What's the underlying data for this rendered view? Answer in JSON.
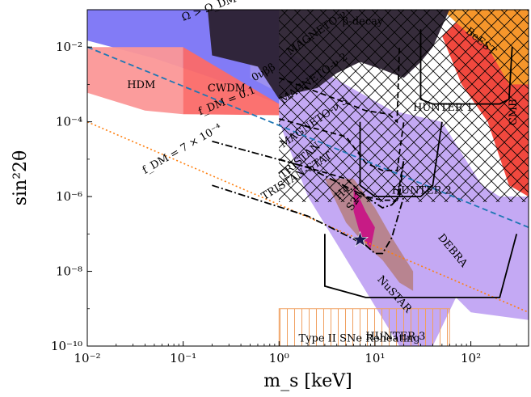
{
  "chart_data": {
    "type": "area",
    "title": "",
    "xlabel": "m_s [keV]",
    "ylabel": "sin²2θ",
    "xscale": "log",
    "yscale": "log",
    "xlim": [
      0.01,
      400
    ],
    "ylim": [
      1e-10,
      0.1
    ],
    "xticks": [
      {
        "value": 0.01,
        "label": "10⁻²"
      },
      {
        "value": 0.1,
        "label": "10⁻¹"
      },
      {
        "value": 1,
        "label": "10⁰"
      },
      {
        "value": 10,
        "label": "10¹"
      },
      {
        "value": 100,
        "label": "10²"
      }
    ],
    "yticks": [
      {
        "value": 1e-10,
        "label": "10⁻¹⁰"
      },
      {
        "value": 1e-08,
        "label": "10⁻⁸"
      },
      {
        "value": 1e-06,
        "label": "10⁻⁶"
      },
      {
        "value": 0.0001,
        "label": "10⁻⁴"
      },
      {
        "value": 0.01,
        "label": "10⁻²"
      }
    ],
    "regions": [
      {
        "name": "Ω > Ω_DM",
        "color": "#7b74f5",
        "points": [
          [
            0.01,
            0.1
          ],
          [
            1,
            0.1
          ],
          [
            1,
            0.0003
          ],
          [
            0.2,
            0.0015
          ],
          [
            0.05,
            0.005
          ],
          [
            0.01,
            0.015
          ]
        ]
      },
      {
        "name": "HDM",
        "color": "#fb9797",
        "points": [
          [
            0.01,
            0.01
          ],
          [
            0.1,
            0.01
          ],
          [
            0.1,
            0.00016
          ],
          [
            0.04,
            0.0002
          ],
          [
            0.01,
            0.0006
          ]
        ]
      },
      {
        "name": "CWDM",
        "color": "#fb6a68",
        "points": [
          [
            0.1,
            0.01
          ],
          [
            1,
            0.0003
          ],
          [
            1,
            0.00015
          ],
          [
            0.1,
            0.00016
          ]
        ]
      },
      {
        "name": "0νββ",
        "color": "#9d91ee",
        "points": [
          [
            0.5,
            0.004
          ],
          [
            1,
            0.002
          ],
          [
            1,
            0.0006
          ],
          [
            0.5,
            0.0015
          ]
        ]
      },
      {
        "name": "DEBRA",
        "color": "#c1a4f3",
        "points": [
          [
            1,
            0.01
          ],
          [
            15,
            0.0002
          ],
          [
            50,
            0.0001
          ],
          [
            130,
            2e-06
          ],
          [
            200,
            1e-06
          ],
          [
            400,
            1e-06
          ],
          [
            400,
            5e-10
          ],
          [
            100,
            8e-10
          ],
          [
            70,
            2e-09
          ],
          [
            40,
            1e-10
          ],
          [
            18,
            1e-10
          ],
          [
            2,
            1e-06
          ],
          [
            1,
            0.0001
          ]
        ]
      },
      {
        "name": "NuSTAR",
        "color": "#b7828a",
        "points": [
          [
            3,
            3e-06
          ],
          [
            5,
            2e-07
          ],
          [
            8,
            5e-08
          ],
          [
            12,
            2e-08
          ],
          [
            18,
            5e-09
          ],
          [
            25,
            3e-09
          ],
          [
            25,
            1e-08
          ],
          [
            15,
            8e-08
          ],
          [
            10,
            5e-07
          ],
          [
            6,
            3e-06
          ]
        ]
      },
      {
        "name": "S21",
        "color": "#c71585",
        "points": [
          [
            6,
            2e-06
          ],
          [
            8,
            4e-07
          ],
          [
            10,
            1.5e-07
          ],
          [
            9,
            4e-08
          ],
          [
            7,
            1e-07
          ],
          [
            6,
            4e-07
          ]
        ]
      },
      {
        "name": "CMB",
        "color": "#f03e34",
        "points": [
          [
            100,
            0.1
          ],
          [
            250,
            0.1
          ],
          [
            400,
            0.1
          ],
          [
            400,
            1e-06
          ],
          [
            250,
            2e-06
          ],
          [
            150,
            0.0001
          ],
          [
            80,
            0.001
          ],
          [
            50,
            0.02
          ]
        ]
      },
      {
        "name": "BeEST",
        "color": "#f59b2a",
        "points": [
          [
            50,
            0.1
          ],
          [
            400,
            0.1
          ],
          [
            400,
            0.001
          ],
          [
            250,
            0.001
          ],
          [
            150,
            0.01
          ],
          [
            100,
            0.02
          ]
        ]
      },
      {
        "name": "β-decay",
        "color": "#2b2130",
        "points": [
          [
            0.18,
            0.1
          ],
          [
            60,
            0.1
          ],
          [
            40,
            0.01
          ],
          [
            30,
            0.004
          ],
          [
            20,
            0.0015
          ],
          [
            12,
            0.0025
          ],
          [
            7,
            0.004
          ],
          [
            4,
            0.002
          ],
          [
            2.5,
            0.0008
          ],
          [
            1.5,
            0.0006
          ],
          [
            1,
            0.0004
          ],
          [
            0.6,
            0.003
          ],
          [
            0.2,
            0.006
          ]
        ]
      },
      {
        "name": "Type II SNe Reheating",
        "color": "#f0a060",
        "points": [
          [
            1,
            1e-09
          ],
          [
            1,
            1e-10
          ],
          [
            60,
            1e-10
          ],
          [
            60,
            1e-09
          ]
        ]
      }
    ],
    "lines": [
      {
        "name": "f_DM = 0.1",
        "color": "#1f77b4",
        "style": "dashed",
        "points": [
          [
            0.01,
            0.01
          ],
          [
            400,
            1.5e-07
          ]
        ]
      },
      {
        "name": "f_DM = 7 × 10⁻⁴",
        "color": "#ff7f0e",
        "style": "dotted",
        "points": [
          [
            0.01,
            0.0001
          ],
          [
            400,
            8e-10
          ]
        ]
      },
      {
        "name": "MAGNETO-ν",
        "color": "#000000",
        "style": "dashed",
        "points": [
          [
            1,
            0.0015
          ],
          [
            4,
            0.0004
          ],
          [
            8,
            0.0002
          ],
          [
            14,
            0.00016
          ],
          [
            17,
            0.0001
          ],
          [
            18,
            0.01
          ]
        ]
      },
      {
        "name": "MAGNETO-ν 2",
        "color": "#000000",
        "style": "dashed",
        "points": [
          [
            1,
            0.00012
          ],
          [
            5,
            4e-05
          ],
          [
            8,
            8e-06
          ],
          [
            12,
            5e-06
          ],
          [
            17,
            5e-06
          ],
          [
            20,
            0.0001
          ]
        ]
      },
      {
        "name": "MAGNETO-ν 3",
        "color": "#000000",
        "style": "dashed",
        "points": [
          [
            1,
            1e-05
          ],
          [
            5,
            3e-06
          ],
          [
            8,
            1e-06
          ],
          [
            12,
            8e-07
          ],
          [
            17,
            8e-07
          ],
          [
            20,
            1e-05
          ]
        ]
      },
      {
        "name": "TRISTAN",
        "color": "#000000",
        "style": "dashdot",
        "points": [
          [
            0.2,
            3e-05
          ],
          [
            2,
            6e-06
          ],
          [
            8,
            1e-06
          ],
          [
            12,
            5e-07
          ],
          [
            15,
            6e-07
          ],
          [
            18,
            1e-06
          ],
          [
            20,
            1e-05
          ]
        ]
      },
      {
        "name": "TRISTAN-STAT",
        "color": "#000000",
        "style": "dashdot",
        "points": [
          [
            0.2,
            2e-06
          ],
          [
            2,
            3e-07
          ],
          [
            8,
            5e-08
          ],
          [
            10,
            3e-08
          ],
          [
            12,
            3e-08
          ],
          [
            15,
            8e-08
          ],
          [
            18,
            4e-07
          ],
          [
            20,
            1e-06
          ]
        ]
      },
      {
        "name": "HUNTER 1",
        "color": "#000000",
        "style": "solid",
        "points": [
          [
            30,
            0.03
          ],
          [
            30,
            0.0004
          ],
          [
            40,
            0.0003
          ],
          [
            200,
            0.0003
          ],
          [
            250,
            0.0004
          ],
          [
            270,
            0.01
          ]
        ]
      },
      {
        "name": "HUNTER 2",
        "color": "#000000",
        "style": "solid",
        "points": [
          [
            7,
            0.0001
          ],
          [
            7,
            2e-06
          ],
          [
            10,
            1e-06
          ],
          [
            30,
            1e-06
          ],
          [
            40,
            2e-06
          ],
          [
            50,
            0.0001
          ]
        ]
      },
      {
        "name": "HUNTER 3",
        "color": "#000000",
        "style": "solid",
        "points": [
          [
            3,
            1e-07
          ],
          [
            3,
            4e-09
          ],
          [
            8,
            2e-09
          ],
          [
            150,
            2e-09
          ],
          [
            200,
            2e-09
          ],
          [
            300,
            1e-07
          ]
        ]
      }
    ],
    "labels": [
      {
        "text": "Ω > Ω_DM",
        "x": 0.1,
        "y": 0.05,
        "rotate": -20,
        "color": "#ffffff"
      },
      {
        "text": "β-decay",
        "x": 4.6,
        "y": 0.04,
        "rotate": 0,
        "color": "#ffffff"
      },
      {
        "text": "BeEST",
        "x": 87,
        "y": 0.025,
        "rotate": 40,
        "color": "#000000"
      },
      {
        "text": "CMB",
        "x": 300,
        "y": 8e-05,
        "rotate": -90,
        "color": "#000000"
      },
      {
        "text": "HDM",
        "x": 0.026,
        "y": 0.0008,
        "rotate": 0,
        "color": "#000000"
      },
      {
        "text": "CWDM",
        "x": 0.18,
        "y": 0.00065,
        "rotate": 0,
        "color": "#000000"
      },
      {
        "text": "0νββ",
        "x": 0.55,
        "y": 0.0012,
        "rotate": -30,
        "color": "#ffffff"
      },
      {
        "text": "MAGNETO-ν",
        "x": 1.3,
        "y": 0.006,
        "rotate": -35,
        "color": "#000000"
      },
      {
        "text": "MAGNETO-ν 2",
        "x": 1.1,
        "y": 0.0003,
        "rotate": -35,
        "color": "#000000"
      },
      {
        "text": "MAGNETO-ν 3",
        "x": 1.1,
        "y": 2e-05,
        "rotate": -35,
        "color": "#000000"
      },
      {
        "text": "f_DM = 0.1",
        "x": 0.15,
        "y": 0.00015,
        "rotate": -22,
        "color": "#000000"
      },
      {
        "text": "f_DM = 7 × 10⁻⁴",
        "x": 0.04,
        "y": 4e-06,
        "rotate": -30,
        "color": "#000000"
      },
      {
        "text": "TRISTAN",
        "x": 1.1,
        "y": 3e-06,
        "rotate": -40,
        "color": "#000000"
      },
      {
        "text": "H4",
        "x": 4.2,
        "y": 8e-07,
        "rotate": -42,
        "color": "#000000"
      },
      {
        "text": "S21",
        "x": 5.7,
        "y": 4e-07,
        "rotate": -55,
        "color": "#ffffff"
      },
      {
        "text": "TRISTAN-STAT",
        "x": 0.7,
        "y": 8e-07,
        "rotate": -32,
        "color": "#000000"
      },
      {
        "text": "HUNTER 1",
        "x": 25,
        "y": 0.0002,
        "rotate": 0,
        "color": "#000000"
      },
      {
        "text": "HUNTER 2",
        "x": 15,
        "y": 1.2e-06,
        "rotate": 0,
        "color": "#000000"
      },
      {
        "text": "DEBRA",
        "x": 45,
        "y": 8e-08,
        "rotate": 50,
        "color": "#000000"
      },
      {
        "text": "NuSTAR",
        "x": 10.5,
        "y": 6e-09,
        "rotate": 48,
        "color": "#000000"
      },
      {
        "text": "HUNTER 3",
        "x": 8,
        "y": 1.5e-10,
        "rotate": 0,
        "color": "#000000"
      },
      {
        "text": "Type II SNe Reheating",
        "x": 1.6,
        "y": 1.3e-10,
        "rotate": 0,
        "color": "#e8924a"
      }
    ],
    "markers": [
      {
        "name": "star",
        "x": 7,
        "y": 7e-08,
        "color": "#1a1a4e"
      }
    ]
  }
}
